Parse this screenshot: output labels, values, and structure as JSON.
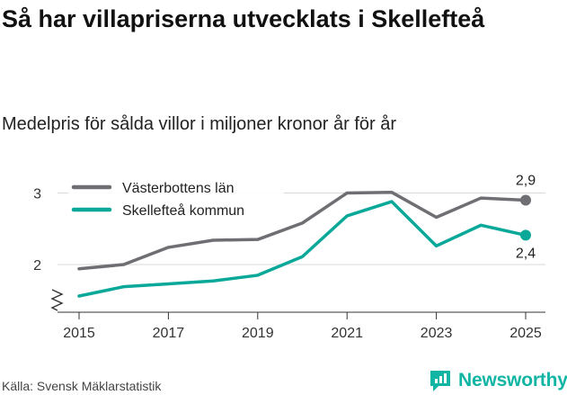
{
  "title": "Så har villapriserna utvecklats i Skellefteå",
  "subtitle": "Medelpris för sålda villor i miljoner kronor år för år",
  "source": "Källa: Svensk Mäklarstatistik",
  "brand": {
    "name": "Newsworthy",
    "icon": "newsworthy-logo-icon",
    "color": "#11b5a4"
  },
  "chart_data": {
    "type": "line",
    "title": "Så har villapriserna utvecklats i Skellefteå",
    "subtitle": "Medelpris för sålda villor i miljoner kronor år för år",
    "xlabel": "",
    "ylabel": "",
    "x": [
      2015,
      2016,
      2017,
      2018,
      2019,
      2020,
      2021,
      2022,
      2023,
      2024,
      2025
    ],
    "xticks": [
      "2015",
      "2017",
      "2019",
      "2021",
      "2023",
      "2025"
    ],
    "yticks": [
      "2",
      "3"
    ],
    "ylim": [
      1.4,
      3.3
    ],
    "axis_break": true,
    "legend_position": "top-left",
    "series": [
      {
        "name": "Västerbottens län",
        "color": "#6e6e73",
        "values": [
          1.94,
          2.0,
          2.24,
          2.34,
          2.35,
          2.58,
          3.0,
          3.01,
          2.66,
          2.93,
          2.9
        ],
        "end_label": "2,9"
      },
      {
        "name": "Skellefteå kommun",
        "color": "#0aa899",
        "values": [
          1.56,
          1.69,
          1.73,
          1.77,
          1.85,
          2.11,
          2.68,
          2.88,
          2.26,
          2.55,
          2.41
        ],
        "end_label": "2,4"
      }
    ]
  }
}
